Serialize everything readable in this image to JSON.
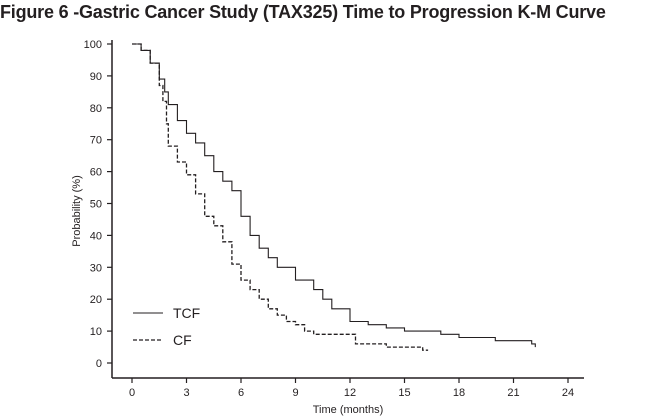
{
  "chart_data": {
    "type": "line",
    "title": "Figure 6 -Gastric Cancer Study (TAX325) Time to Progression K-M Curve",
    "xlabel": "Time (months)",
    "ylabel": "Probability (%)",
    "xlim": [
      0,
      24
    ],
    "ylim": [
      0,
      100
    ],
    "xticks": [
      0,
      3,
      6,
      9,
      12,
      15,
      18,
      21,
      24
    ],
    "yticks": [
      0,
      10,
      20,
      30,
      40,
      50,
      60,
      70,
      80,
      90,
      100
    ],
    "grid": false,
    "legend_position": "bottom-left",
    "series": [
      {
        "name": "TCF",
        "style": "solid",
        "color": "#231f20",
        "x": [
          0,
          0.5,
          1.0,
          1.5,
          1.8,
          2.0,
          2.5,
          3.0,
          3.5,
          4.0,
          4.5,
          5.0,
          5.5,
          6.0,
          6.5,
          7.0,
          7.5,
          8.0,
          9.0,
          10.0,
          10.5,
          11.0,
          12.0,
          13.0,
          14.0,
          15.0,
          16.0,
          17.0,
          18.0,
          19.0,
          20.0,
          21.0,
          22.0,
          22.2
        ],
        "y": [
          100,
          98,
          94,
          89,
          85,
          81,
          76,
          72,
          69,
          65,
          60,
          57,
          54,
          46,
          40,
          36,
          33,
          30,
          26,
          23,
          20,
          17,
          13,
          12,
          11,
          10,
          10,
          9,
          8,
          8,
          7,
          7,
          6,
          5
        ]
      },
      {
        "name": "CF",
        "style": "dashed",
        "color": "#231f20",
        "x": [
          0,
          0.5,
          1.0,
          1.5,
          1.7,
          1.9,
          2.0,
          2.5,
          3.0,
          3.5,
          4.0,
          4.5,
          5.0,
          5.5,
          6.0,
          6.5,
          7.0,
          7.5,
          8.0,
          8.5,
          9.0,
          9.5,
          10.0,
          12.0,
          12.3,
          13.0,
          14.0,
          15.0,
          16.0,
          16.3
        ],
        "y": [
          100,
          98,
          94,
          87,
          82,
          75,
          68,
          63,
          59,
          53,
          46,
          43,
          38,
          31,
          26,
          23,
          20,
          17,
          15,
          13,
          12,
          10,
          9,
          9,
          6,
          6,
          5,
          5,
          4,
          4
        ]
      }
    ]
  }
}
